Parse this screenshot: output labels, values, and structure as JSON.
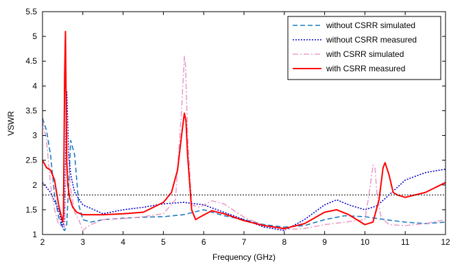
{
  "chart_data": {
    "type": "line",
    "xlabel": "Frequency (GHz)",
    "ylabel": "VSWR",
    "xlim": [
      2,
      12
    ],
    "ylim": [
      1,
      5.5
    ],
    "xticks": [
      2,
      3,
      4,
      5,
      6,
      7,
      8,
      9,
      10,
      11,
      12
    ],
    "yticks": [
      1,
      1.5,
      2,
      2.5,
      3,
      3.5,
      4,
      4.5,
      5,
      5.5
    ],
    "xtick_labels": [
      "2",
      "3",
      "4",
      "5",
      "6",
      "7",
      "8",
      "9",
      "10",
      "11",
      "12"
    ],
    "ytick_labels": [
      "1",
      "1.5",
      "2",
      "2.5",
      "3",
      "3.5",
      "4",
      "4.5",
      "5",
      "5.5"
    ],
    "grid": false,
    "legend_position": "top-right",
    "reference_line": {
      "y": 1.8,
      "style": "dotted",
      "color": "#000000"
    },
    "series": [
      {
        "name": "without CSRR simulated",
        "color": "#1f7bbf",
        "style": "dashed",
        "x": [
          2.0,
          2.1,
          2.2,
          2.3,
          2.4,
          2.5,
          2.55,
          2.6,
          2.65,
          2.7,
          2.8,
          2.9,
          3.0,
          3.2,
          3.5,
          4.0,
          4.5,
          5.0,
          5.5,
          6.0,
          6.5,
          7.0,
          7.5,
          8.0,
          8.5,
          9.0,
          9.5,
          10.0,
          10.5,
          11.0,
          11.5,
          12.0
        ],
        "y": [
          3.35,
          3.1,
          2.6,
          1.8,
          1.35,
          1.12,
          1.08,
          1.2,
          2.0,
          2.9,
          2.6,
          1.6,
          1.3,
          1.25,
          1.3,
          1.33,
          1.35,
          1.36,
          1.4,
          1.5,
          1.38,
          1.3,
          1.2,
          1.15,
          1.18,
          1.3,
          1.38,
          1.36,
          1.3,
          1.25,
          1.22,
          1.25
        ]
      },
      {
        "name": "without CSRR measured",
        "color": "#0000cc",
        "style": "dotted",
        "x": [
          2.0,
          2.2,
          2.4,
          2.5,
          2.55,
          2.6,
          2.65,
          2.7,
          2.8,
          3.0,
          3.5,
          4.0,
          4.5,
          5.0,
          5.5,
          6.0,
          6.5,
          7.0,
          7.5,
          8.0,
          8.5,
          9.0,
          9.3,
          9.6,
          10.0,
          10.3,
          10.6,
          11.0,
          11.5,
          12.0
        ],
        "y": [
          2.05,
          1.85,
          1.5,
          1.15,
          1.3,
          3.9,
          2.6,
          2.2,
          1.85,
          1.6,
          1.42,
          1.5,
          1.55,
          1.62,
          1.65,
          1.6,
          1.45,
          1.3,
          1.15,
          1.08,
          1.3,
          1.6,
          1.7,
          1.6,
          1.5,
          1.58,
          1.8,
          2.1,
          2.25,
          2.32
        ]
      },
      {
        "name": "with CSRR simulated",
        "color": "#e8a0c8",
        "style": "dashdot",
        "x": [
          2.0,
          2.1,
          2.2,
          2.3,
          2.4,
          2.5,
          2.55,
          2.6,
          2.65,
          2.7,
          2.8,
          2.9,
          3.0,
          3.1,
          3.2,
          3.5,
          4.0,
          4.5,
          5.0,
          5.3,
          5.45,
          5.52,
          5.55,
          5.6,
          5.7,
          5.9,
          6.2,
          6.5,
          7.0,
          7.5,
          8.0,
          8.5,
          9.0,
          9.5,
          10.0,
          10.1,
          10.2,
          10.25,
          10.3,
          10.4,
          10.6,
          11.0,
          11.5,
          12.0
        ],
        "y": [
          3.3,
          2.9,
          2.0,
          1.5,
          1.2,
          1.18,
          1.15,
          3.4,
          2.4,
          1.9,
          1.45,
          1.3,
          1.08,
          1.15,
          1.2,
          1.3,
          1.32,
          1.36,
          1.42,
          1.7,
          3.5,
          4.6,
          4.4,
          3.0,
          1.6,
          1.55,
          1.68,
          1.62,
          1.35,
          1.18,
          1.1,
          1.12,
          1.2,
          1.25,
          1.3,
          1.8,
          2.4,
          2.35,
          1.8,
          1.35,
          1.2,
          1.18,
          1.22,
          1.3
        ]
      },
      {
        "name": "with CSRR measured",
        "color": "#ff0000",
        "style": "solid",
        "x": [
          2.0,
          2.1,
          2.2,
          2.3,
          2.4,
          2.5,
          2.52,
          2.55,
          2.57,
          2.6,
          2.63,
          2.67,
          2.75,
          2.85,
          3.0,
          3.2,
          3.5,
          4.0,
          4.5,
          5.0,
          5.2,
          5.35,
          5.45,
          5.52,
          5.56,
          5.6,
          5.7,
          5.8,
          5.9,
          6.2,
          6.5,
          7.0,
          7.5,
          8.0,
          8.5,
          9.0,
          9.3,
          9.6,
          10.0,
          10.2,
          10.35,
          10.45,
          10.5,
          10.6,
          10.7,
          10.8,
          11.0,
          11.5,
          12.0
        ],
        "y": [
          2.5,
          2.35,
          2.3,
          2.1,
          1.6,
          1.25,
          1.4,
          4.2,
          5.1,
          2.5,
          2.0,
          1.75,
          1.55,
          1.45,
          1.4,
          1.4,
          1.4,
          1.42,
          1.45,
          1.65,
          1.85,
          2.3,
          3.0,
          3.45,
          3.3,
          2.6,
          1.5,
          1.3,
          1.35,
          1.48,
          1.42,
          1.28,
          1.18,
          1.12,
          1.22,
          1.45,
          1.5,
          1.4,
          1.2,
          1.25,
          1.7,
          2.35,
          2.45,
          2.2,
          1.85,
          1.8,
          1.75,
          1.85,
          2.05
        ]
      }
    ]
  }
}
